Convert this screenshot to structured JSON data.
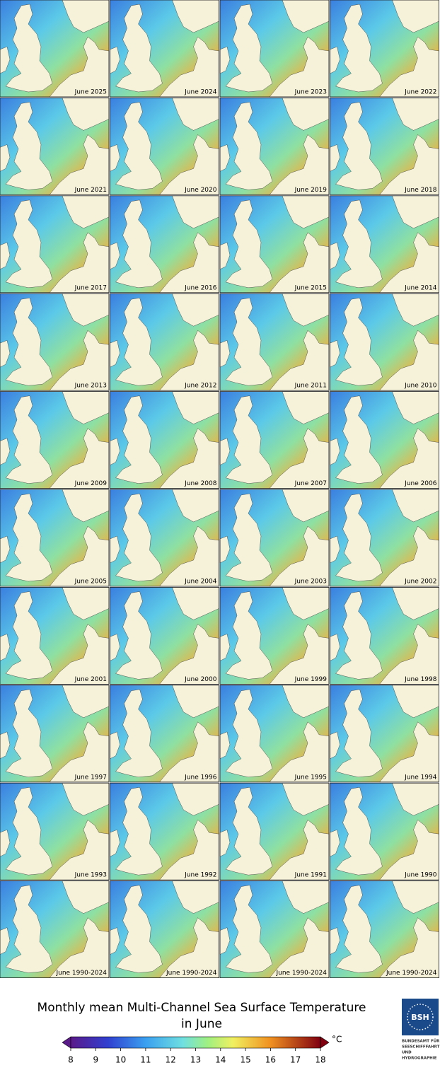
{
  "panels": [
    "June 2025",
    "June 2024",
    "June 2023",
    "June 2022",
    "June 2021",
    "June 2020",
    "June 2019",
    "June 2018",
    "June 2017",
    "June 2016",
    "June 2015",
    "June 2014",
    "June 2013",
    "June 2012",
    "June 2011",
    "June 2010",
    "June 2009",
    "June 2008",
    "June 2007",
    "June 2006",
    "June 2005",
    "June 2004",
    "June 2003",
    "June 2002",
    "June 2001",
    "June 2000",
    "June 1999",
    "June 1998",
    "June 1997",
    "June 1996",
    "June 1995",
    "June 1994",
    "June 1993",
    "June 1992",
    "June 1991",
    "June 1990",
    "June 1990-2024",
    "June 1990-2024",
    "June 1990-2024",
    "June 1990-2024"
  ],
  "title": [
    "Monthly mean Multi-Channel Sea Surface Temperature",
    "in June"
  ],
  "colorbar": {
    "range": [
      8,
      18
    ],
    "ticks": [
      8,
      9,
      10,
      11,
      12,
      13,
      14,
      15,
      16,
      17,
      18
    ],
    "unit": "°C"
  },
  "logo": {
    "acronym": "BSH",
    "lines": [
      "BUNDESAMT FÜR",
      "SEESCHIFFFAHRT",
      "UND",
      "HYDROGRAPHIE"
    ]
  }
}
